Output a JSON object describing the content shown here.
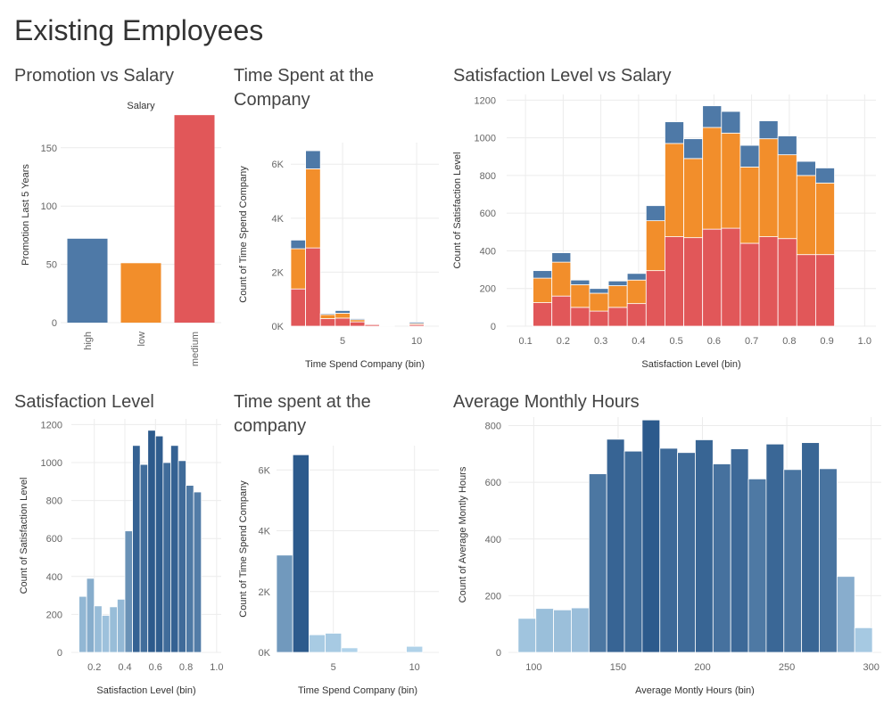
{
  "page": {
    "title": "Existing Employees"
  },
  "panels": {
    "promo": {
      "title": "Promotion vs Salary"
    },
    "time_stack": {
      "title": "Time Spent at the Company"
    },
    "sat_salary": {
      "title": "Satisfaction Level vs Salary"
    },
    "sat_level": {
      "title": "Satisfaction Level"
    },
    "time_single": {
      "title": "Time spent at the company"
    },
    "hours": {
      "title": "Average Monthly Hours"
    }
  },
  "colors": {
    "high": "#4e79a7",
    "low": "#f28e2b",
    "medium": "#e15759"
  },
  "chart_data": [
    {
      "id": "promo",
      "type": "bar",
      "title": "Promotion vs Salary",
      "column_header": "Salary",
      "categories": [
        "high",
        "low",
        "medium"
      ],
      "values": [
        72,
        51,
        178
      ],
      "colors": [
        "#4e79a7",
        "#f28e2b",
        "#e15759"
      ],
      "ylabel": "Promotion Last 5 Years",
      "ylim": [
        0,
        185
      ],
      "yticks": [
        0,
        50,
        100,
        150
      ],
      "grid": true
    },
    {
      "id": "time_stack",
      "type": "bar",
      "stacked": true,
      "title": "Time Spent at the Company",
      "xlabel": "Time Spend Company (bin)",
      "ylabel": "Count of Time Spend Company",
      "x": [
        2,
        3,
        4,
        5,
        6,
        7,
        8,
        10
      ],
      "series": [
        {
          "key": "medium",
          "values": [
            1380,
            2900,
            280,
            300,
            160,
            60,
            20,
            60
          ]
        },
        {
          "key": "low",
          "values": [
            1490,
            2930,
            150,
            180,
            80,
            25,
            15,
            40
          ]
        },
        {
          "key": "high",
          "values": [
            320,
            670,
            40,
            100,
            40,
            15,
            10,
            50
          ]
        }
      ],
      "xlim": [
        1.5,
        11.5
      ],
      "xticks": [
        5,
        10
      ],
      "ylim": [
        0,
        6800
      ],
      "yticks": [
        0,
        2000,
        4000,
        6000
      ],
      "ytick_labels": [
        "0K",
        "2K",
        "4K",
        "6K"
      ],
      "grid": true
    },
    {
      "id": "sat_salary",
      "type": "bar",
      "stacked": true,
      "title": "Satisfaction Level vs Salary",
      "xlabel": "Satisfaction Level (bin)",
      "ylabel": "Count of Satisfaction Level",
      "x": [
        0.1,
        0.15,
        0.2,
        0.25,
        0.3,
        0.35,
        0.4,
        0.45,
        0.5,
        0.55,
        0.6,
        0.65,
        0.7,
        0.75,
        0.8,
        0.85,
        0.9,
        0.95
      ],
      "series": [
        {
          "key": "medium",
          "values": [
            125,
            160,
            100,
            80,
            100,
            120,
            295,
            475,
            470,
            515,
            520,
            440,
            475,
            465,
            380,
            380,
            0,
            0
          ]
        },
        {
          "key": "low",
          "values": [
            130,
            180,
            120,
            95,
            115,
            125,
            265,
            495,
            420,
            540,
            505,
            405,
            520,
            445,
            420,
            380,
            0,
            0
          ]
        },
        {
          "key": "high",
          "values": [
            40,
            50,
            25,
            25,
            25,
            35,
            80,
            115,
            105,
            115,
            115,
            115,
            95,
            100,
            75,
            80,
            0,
            0
          ]
        }
      ],
      "xlim": [
        0.05,
        1.03
      ],
      "xticks": [
        0.1,
        0.2,
        0.3,
        0.4,
        0.5,
        0.6,
        0.7,
        0.8,
        0.9,
        1.0
      ],
      "ylim": [
        0,
        1230
      ],
      "yticks": [
        0,
        200,
        400,
        600,
        800,
        1000,
        1200
      ],
      "grid": true
    },
    {
      "id": "sat_level",
      "type": "bar",
      "title": "Satisfaction Level",
      "xlabel": "Satisfaction Level (bin)",
      "ylabel": "Count of Satisfaction Level",
      "x": [
        0.09,
        0.14,
        0.19,
        0.24,
        0.29,
        0.34,
        0.39,
        0.44,
        0.49,
        0.54,
        0.59,
        0.64,
        0.69,
        0.74,
        0.79,
        0.84,
        0.89,
        0.94
      ],
      "values": [
        295,
        390,
        245,
        195,
        240,
        280,
        640,
        1090,
        990,
        1170,
        1140,
        1000,
        1090,
        1010,
        880,
        845,
        0,
        0
      ],
      "xlim": [
        0.05,
        1.03
      ],
      "xticks": [
        0.2,
        0.4,
        0.6,
        0.8,
        1.0
      ],
      "ylim": [
        0,
        1230
      ],
      "yticks": [
        0,
        200,
        400,
        600,
        800,
        1000,
        1200
      ],
      "grid": true
    },
    {
      "id": "time_single",
      "type": "bar",
      "title": "Time spent at the company",
      "xlabel": "Time Spend Company (bin)",
      "ylabel": "Count of Time Spend Company",
      "x": [
        2,
        3,
        4,
        5,
        6,
        7,
        8,
        10
      ],
      "values": [
        3200,
        6500,
        580,
        630,
        150,
        0,
        0,
        200
      ],
      "xlim": [
        1.5,
        11.5
      ],
      "xticks": [
        5,
        10
      ],
      "ylim": [
        0,
        6800
      ],
      "yticks": [
        0,
        2000,
        4000,
        6000
      ],
      "ytick_labels": [
        "0K",
        "2K",
        "4K",
        "6K"
      ],
      "grid": true
    },
    {
      "id": "hours",
      "type": "bar",
      "title": "Average Monthly Hours",
      "xlabel": "Average Montly Hours (bin)",
      "ylabel": "Count of Average Montly Hours",
      "x": [
        96,
        106.5,
        117,
        127.5,
        138,
        148.5,
        159,
        169.5,
        180,
        190.5,
        201,
        211.5,
        222,
        232.5,
        243,
        253.5,
        264,
        274.5,
        285,
        295.5
      ],
      "values": [
        120,
        155,
        150,
        157,
        630,
        752,
        710,
        820,
        720,
        705,
        750,
        665,
        718,
        612,
        735,
        645,
        740,
        648,
        268,
        87
      ],
      "xlim": [
        85,
        306
      ],
      "xticks": [
        100,
        150,
        200,
        250,
        300
      ],
      "ylim": [
        0,
        830
      ],
      "yticks": [
        0,
        200,
        400,
        600,
        800
      ],
      "grid": true
    }
  ]
}
